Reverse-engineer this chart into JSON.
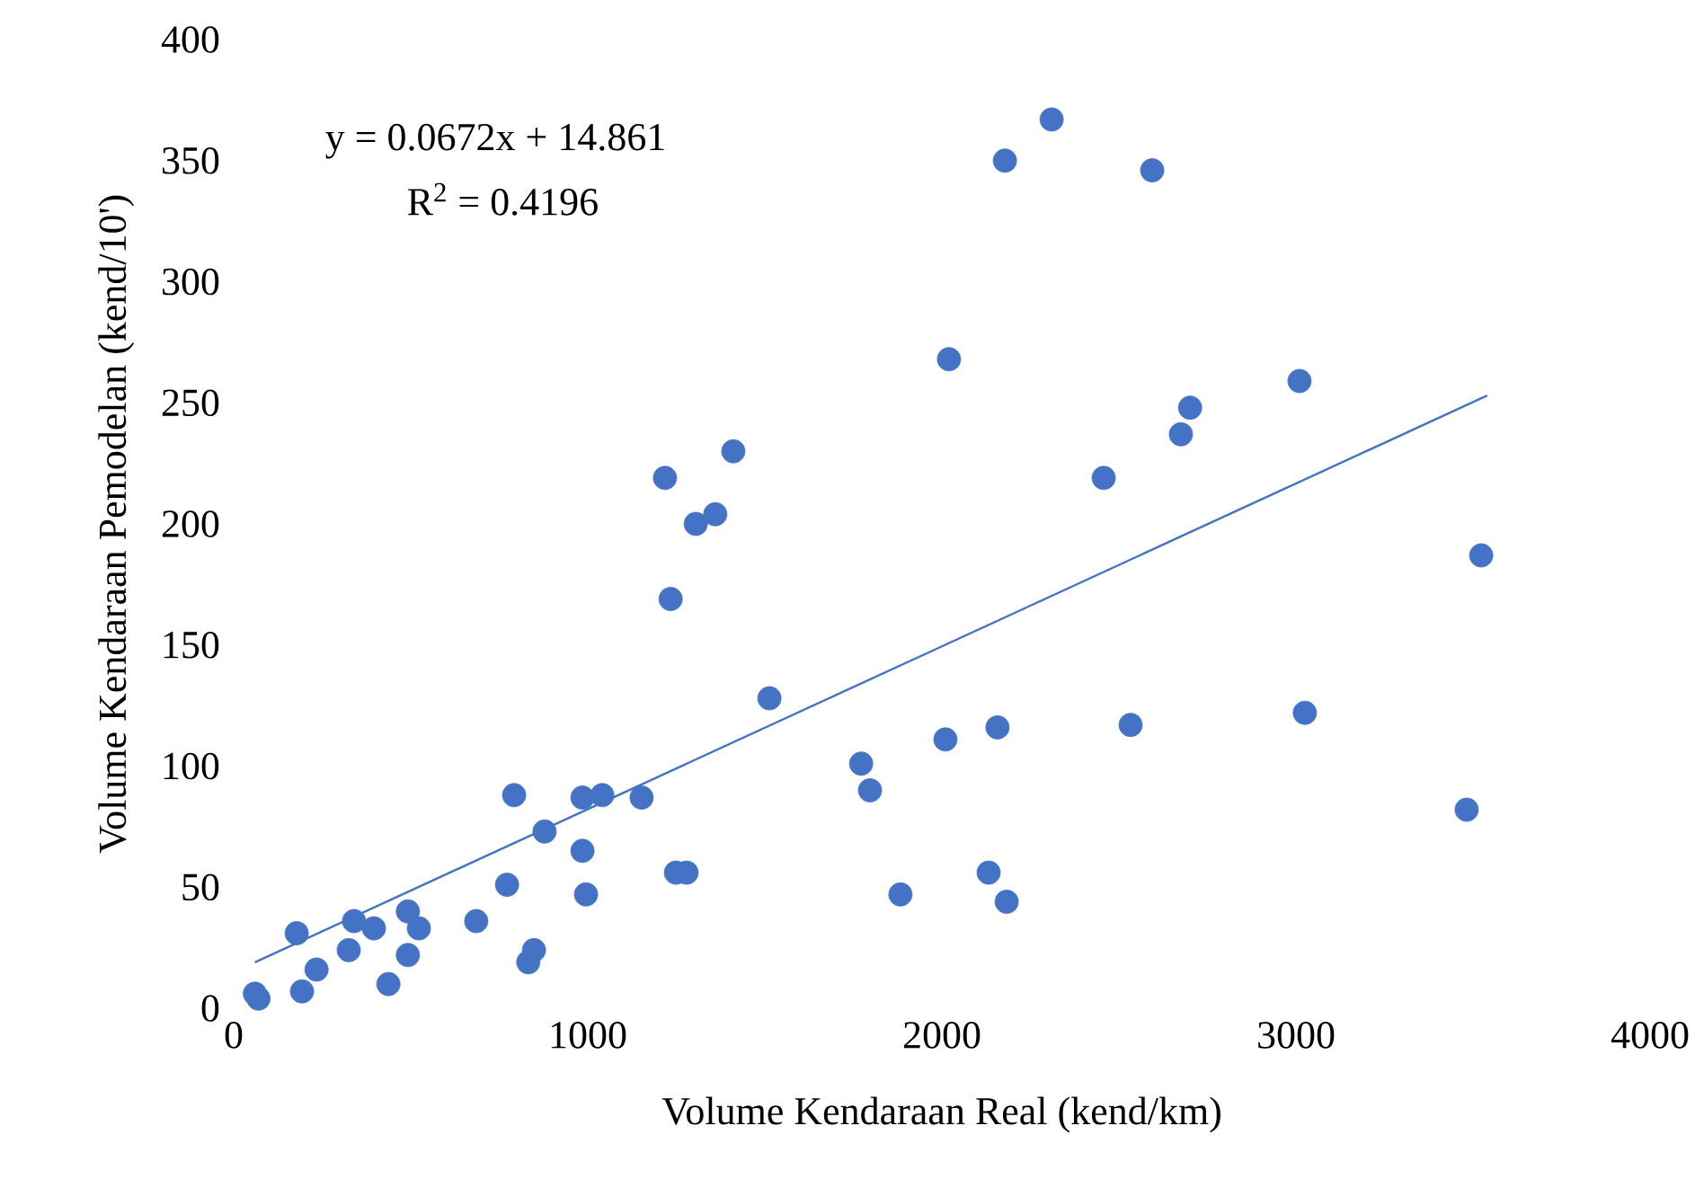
{
  "chart_data": {
    "type": "scatter",
    "xlabel": "Volume Kendaraan Real (kend/km)",
    "ylabel": "Volume Kendaraan Pemodelan (kend/10')",
    "annotations": [
      "y = 0.0672x + 14.861",
      "R$^{2}$ = 0.4196"
    ],
    "xlim": [
      0,
      4000
    ],
    "ylim": [
      0,
      400
    ],
    "xticks": [
      0,
      1000,
      2000,
      3000,
      4000
    ],
    "yticks": [
      0,
      50,
      100,
      150,
      200,
      250,
      300,
      350,
      400
    ],
    "grid": false,
    "series": [
      {
        "color": "#4472c4",
        "marker": "circle",
        "x": [
          60,
          70,
          178,
          193,
          234,
          325,
          340,
          396,
          437,
          492,
          492,
          523,
          685,
          772,
          792,
          832,
          848,
          878,
          985,
          985,
          995,
          1041,
          1152,
          1218,
          1234,
          1249,
          1279,
          1305,
          1360,
          1411,
          1513,
          1772,
          1797,
          1883,
          2010,
          2020,
          2132,
          2157,
          2178,
          2183,
          2310,
          2457,
          2533,
          2594,
          2675,
          2701,
          3010,
          3025,
          3482,
          3523
        ],
        "values": [
          6,
          4,
          31,
          7,
          16,
          24,
          36,
          33,
          10,
          40,
          22,
          33,
          36,
          51,
          88,
          19,
          24,
          73,
          87,
          65,
          47,
          88,
          87,
          219,
          169,
          56,
          56,
          200,
          204,
          230,
          128,
          101,
          90,
          47,
          111,
          268,
          56,
          116,
          350,
          44,
          367,
          219,
          117,
          346,
          237,
          248,
          259,
          122,
          82,
          187
        ]
      },
      {
        "type": "line",
        "color": "#4472c4",
        "marker": "none",
        "line_style": "solid",
        "x": [
          60,
          3540
        ],
        "values": [
          19,
          253
        ]
      }
    ]
  }
}
